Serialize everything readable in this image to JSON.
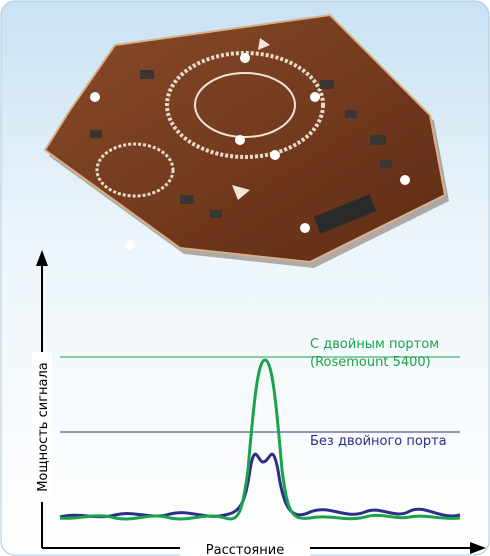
{
  "labels": {
    "y_axis": "Мощность сигнала",
    "x_axis": "Расстояние"
  },
  "annotations": [
    {
      "lines": [
        "С двойным портом",
        "(Rosemount 5400)"
      ]
    },
    {
      "lines": [
        "Без двойного порта"
      ]
    }
  ]
}
